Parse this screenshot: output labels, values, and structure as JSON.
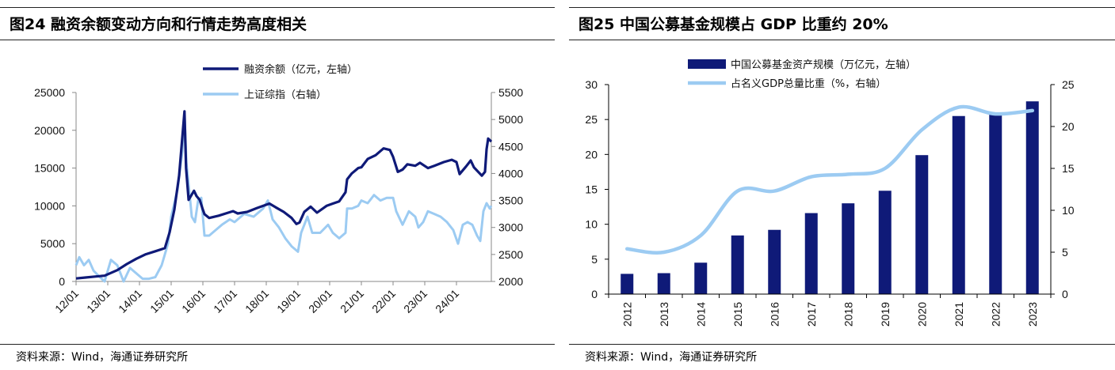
{
  "panels": [
    {
      "title": "图24 融资余额变动方向和行情走势高度相关",
      "source": "资料来源：Wind，海通证券研究所"
    },
    {
      "title": "图25 中国公募基金规模占 GDP 比重约 20%",
      "source": "资料来源：Wind，海通证券研究所"
    }
  ],
  "colors": {
    "navy": "#0f1a78",
    "light_blue": "#9ccbf2",
    "axis": "#888888"
  },
  "chart_data": [
    {
      "type": "line",
      "title": "融资余额变动方向和行情走势高度相关",
      "legend": [
        "融资余额（亿元，左轴）",
        "上证综指（右轴）"
      ],
      "x_tick_labels": [
        "12/01",
        "13/01",
        "14/01",
        "15/01",
        "16/01",
        "17/01",
        "18/01",
        "19/01",
        "20/01",
        "21/01",
        "22/01",
        "23/01",
        "24/01"
      ],
      "x_range": [
        2012.0,
        2025.1
      ],
      "y_left": {
        "ticks": [
          0,
          5000,
          10000,
          15000,
          20000,
          25000
        ],
        "range": [
          0,
          25000
        ]
      },
      "y_right": {
        "ticks": [
          2000,
          2500,
          3000,
          3500,
          4000,
          4500,
          5000,
          5500
        ],
        "range": [
          2000,
          5500
        ]
      },
      "series": [
        {
          "name": "融资余额（亿元，左轴）",
          "axis": "left",
          "points": [
            [
              2012.0,
              400
            ],
            [
              2012.3,
              520
            ],
            [
              2012.6,
              650
            ],
            [
              2012.9,
              760
            ],
            [
              2013.0,
              950
            ],
            [
              2013.3,
              1500
            ],
            [
              2013.6,
              2300
            ],
            [
              2013.9,
              3000
            ],
            [
              2014.2,
              3600
            ],
            [
              2014.5,
              4000
            ],
            [
              2014.8,
              4400
            ],
            [
              2014.95,
              6500
            ],
            [
              2015.1,
              9500
            ],
            [
              2015.25,
              14000
            ],
            [
              2015.35,
              19000
            ],
            [
              2015.42,
              22500
            ],
            [
              2015.47,
              15000
            ],
            [
              2015.55,
              10800
            ],
            [
              2015.65,
              11500
            ],
            [
              2015.72,
              12000
            ],
            [
              2015.8,
              11300
            ],
            [
              2015.9,
              10800
            ],
            [
              2016.0,
              9500
            ],
            [
              2016.05,
              8900
            ],
            [
              2016.2,
              8400
            ],
            [
              2016.5,
              8700
            ],
            [
              2016.8,
              9100
            ],
            [
              2016.95,
              9300
            ],
            [
              2017.1,
              9000
            ],
            [
              2017.4,
              9200
            ],
            [
              2017.7,
              9700
            ],
            [
              2017.9,
              10000
            ],
            [
              2018.1,
              10300
            ],
            [
              2018.3,
              9800
            ],
            [
              2018.55,
              9200
            ],
            [
              2018.8,
              8400
            ],
            [
              2018.95,
              7600
            ],
            [
              2019.05,
              7800
            ],
            [
              2019.2,
              9200
            ],
            [
              2019.4,
              9900
            ],
            [
              2019.6,
              9100
            ],
            [
              2019.9,
              10000
            ],
            [
              2020.1,
              10300
            ],
            [
              2020.3,
              10600
            ],
            [
              2020.5,
              11800
            ],
            [
              2020.55,
              13500
            ],
            [
              2020.7,
              14300
            ],
            [
              2020.9,
              15000
            ],
            [
              2021.0,
              15100
            ],
            [
              2021.2,
              16200
            ],
            [
              2021.45,
              16700
            ],
            [
              2021.7,
              17600
            ],
            [
              2021.9,
              17400
            ],
            [
              2022.0,
              16500
            ],
            [
              2022.15,
              14500
            ],
            [
              2022.3,
              14800
            ],
            [
              2022.45,
              15500
            ],
            [
              2022.7,
              15300
            ],
            [
              2022.85,
              15700
            ],
            [
              2023.1,
              15000
            ],
            [
              2023.3,
              15300
            ],
            [
              2023.6,
              15800
            ],
            [
              2023.85,
              16100
            ],
            [
              2024.0,
              15800
            ],
            [
              2024.1,
              14200
            ],
            [
              2024.3,
              15200
            ],
            [
              2024.45,
              16000
            ],
            [
              2024.55,
              15100
            ],
            [
              2024.8,
              14000
            ],
            [
              2024.9,
              14500
            ],
            [
              2024.95,
              17500
            ],
            [
              2025.0,
              18900
            ],
            [
              2025.1,
              18500
            ]
          ]
        },
        {
          "name": "上证综指（右轴）",
          "axis": "right",
          "points": [
            [
              2012.0,
              2300
            ],
            [
              2012.1,
              2450
            ],
            [
              2012.25,
              2300
            ],
            [
              2012.4,
              2400
            ],
            [
              2012.55,
              2200
            ],
            [
              2012.75,
              2080
            ],
            [
              2012.9,
              2000
            ],
            [
              2013.0,
              2200
            ],
            [
              2013.1,
              2400
            ],
            [
              2013.3,
              2300
            ],
            [
              2013.5,
              2000
            ],
            [
              2013.7,
              2250
            ],
            [
              2013.9,
              2150
            ],
            [
              2014.1,
              2050
            ],
            [
              2014.3,
              2050
            ],
            [
              2014.5,
              2080
            ],
            [
              2014.7,
              2300
            ],
            [
              2014.9,
              2700
            ],
            [
              2015.0,
              3200
            ],
            [
              2015.2,
              3700
            ],
            [
              2015.35,
              4400
            ],
            [
              2015.42,
              5100
            ],
            [
              2015.48,
              4200
            ],
            [
              2015.55,
              3800
            ],
            [
              2015.65,
              3200
            ],
            [
              2015.75,
              3100
            ],
            [
              2015.85,
              3500
            ],
            [
              2015.95,
              3550
            ],
            [
              2016.05,
              2850
            ],
            [
              2016.2,
              2850
            ],
            [
              2016.4,
              2950
            ],
            [
              2016.6,
              3050
            ],
            [
              2016.85,
              3150
            ],
            [
              2017.0,
              3100
            ],
            [
              2017.3,
              3250
            ],
            [
              2017.6,
              3200
            ],
            [
              2017.9,
              3350
            ],
            [
              2018.05,
              3500
            ],
            [
              2018.2,
              3150
            ],
            [
              2018.4,
              3000
            ],
            [
              2018.6,
              2800
            ],
            [
              2018.8,
              2650
            ],
            [
              2019.0,
              2550
            ],
            [
              2019.1,
              2900
            ],
            [
              2019.3,
              3200
            ],
            [
              2019.45,
              2900
            ],
            [
              2019.7,
              2900
            ],
            [
              2019.95,
              3050
            ],
            [
              2020.1,
              2900
            ],
            [
              2020.3,
              2800
            ],
            [
              2020.5,
              2900
            ],
            [
              2020.55,
              3350
            ],
            [
              2020.7,
              3350
            ],
            [
              2020.9,
              3400
            ],
            [
              2021.0,
              3500
            ],
            [
              2021.2,
              3450
            ],
            [
              2021.4,
              3600
            ],
            [
              2021.6,
              3500
            ],
            [
              2021.8,
              3550
            ],
            [
              2022.0,
              3550
            ],
            [
              2022.1,
              3300
            ],
            [
              2022.3,
              3050
            ],
            [
              2022.5,
              3300
            ],
            [
              2022.7,
              3200
            ],
            [
              2022.8,
              3000
            ],
            [
              2022.95,
              3100
            ],
            [
              2023.1,
              3300
            ],
            [
              2023.3,
              3250
            ],
            [
              2023.5,
              3200
            ],
            [
              2023.7,
              3100
            ],
            [
              2023.9,
              2950
            ],
            [
              2024.05,
              2700
            ],
            [
              2024.2,
              3050
            ],
            [
              2024.35,
              3100
            ],
            [
              2024.5,
              3050
            ],
            [
              2024.65,
              2850
            ],
            [
              2024.75,
              2750
            ],
            [
              2024.85,
              3300
            ],
            [
              2024.95,
              3450
            ],
            [
              2025.05,
              3350
            ],
            [
              2025.1,
              3400
            ]
          ]
        }
      ]
    },
    {
      "type": "bar",
      "title": "中国公募基金规模占 GDP 比重约 20%",
      "categories": [
        "2012",
        "2013",
        "2014",
        "2015",
        "2016",
        "2017",
        "2018",
        "2019",
        "2020",
        "2021",
        "2022",
        "2023"
      ],
      "y_left": {
        "ticks": [
          0,
          5,
          10,
          15,
          20,
          25,
          30
        ],
        "range": [
          0,
          30
        ]
      },
      "y_right": {
        "ticks": [
          0,
          5,
          10,
          15,
          20,
          25
        ],
        "range": [
          0,
          25
        ]
      },
      "series": [
        {
          "name": "中国公募基金资产规模（万亿元，左轴）",
          "type": "bar",
          "axis": "left",
          "values": [
            2.9,
            3.0,
            4.5,
            8.4,
            9.2,
            11.6,
            13.0,
            14.8,
            19.9,
            25.5,
            26.0,
            27.6
          ]
        },
        {
          "name": "占名义GDP总量比重（%，右轴）",
          "type": "line",
          "axis": "right",
          "values": [
            5.4,
            5.0,
            7.0,
            12.3,
            12.3,
            14.0,
            14.3,
            15.0,
            19.6,
            22.3,
            21.5,
            21.9
          ]
        }
      ]
    }
  ]
}
